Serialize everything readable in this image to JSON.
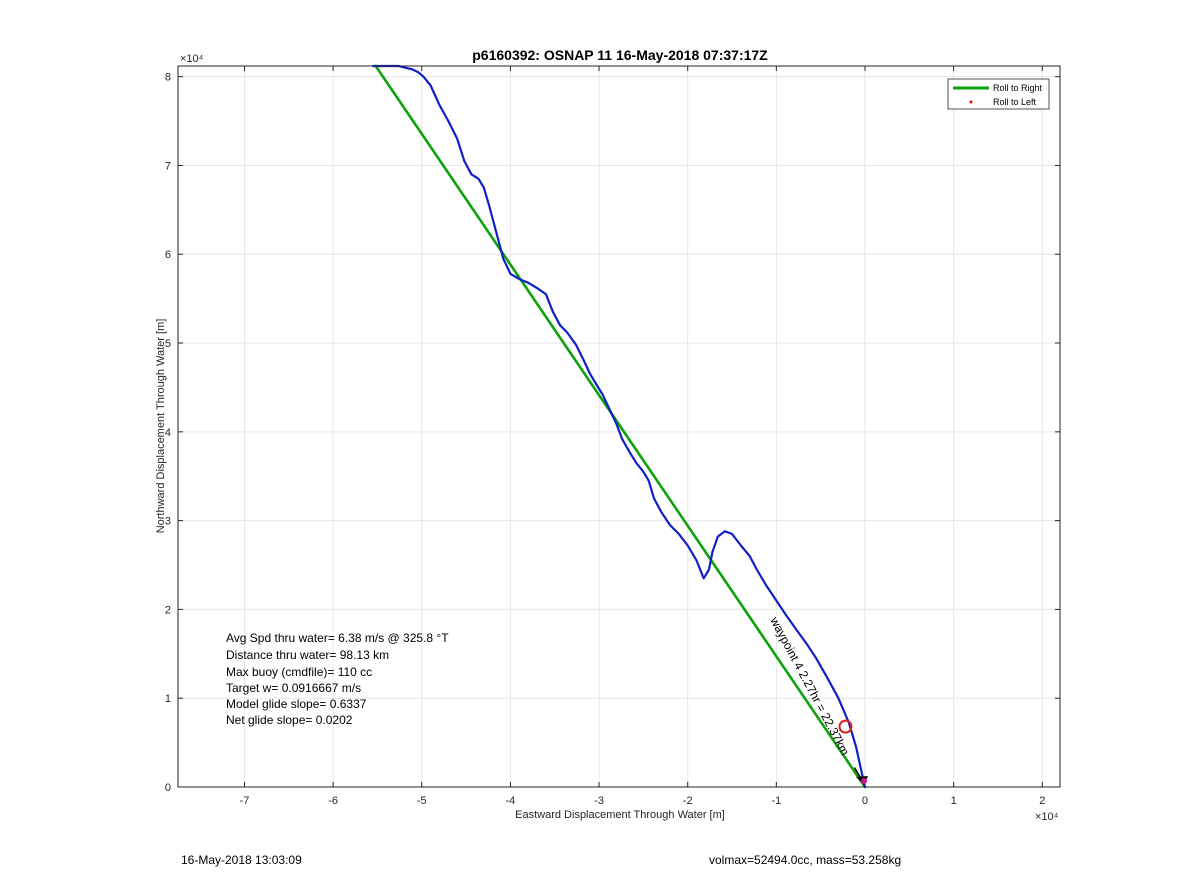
{
  "chart_data": {
    "type": "line",
    "title": "p6160392: OSNAP 11 16-May-2018 07:37:17Z",
    "xlabel": "Eastward Displacement Through Water [m]",
    "ylabel": "Northward Displacement Through Water [m]",
    "x_exponent_label": "×10⁴",
    "y_exponent_label": "×10⁴",
    "xlim": [
      -7.75,
      2.2
    ],
    "ylim": [
      0,
      8.12
    ],
    "x_scale_factor": 10000,
    "y_scale_factor": 10000,
    "xticks": [
      -7,
      -6,
      -5,
      -4,
      -3,
      -2,
      -1,
      0,
      1,
      2
    ],
    "yticks": [
      0,
      1,
      2,
      3,
      4,
      5,
      6,
      7,
      8
    ],
    "grid": true,
    "legend_position": "top-right",
    "legend": [
      {
        "label": "Roll to Right",
        "color": "#0da20d",
        "style": "line"
      },
      {
        "label": "Roll to Left",
        "color": "#ff0000",
        "style": "dot"
      }
    ],
    "series": [
      {
        "name": "Roll to Right",
        "color": "#0da20d",
        "x": [
          0,
          -5.52
        ],
        "y": [
          0,
          8.12
        ]
      },
      {
        "color": "#1020c8",
        "x": [
          0,
          -0.05,
          -0.1,
          -0.18,
          -0.3,
          -0.42,
          -0.55,
          -0.65,
          -0.78,
          -0.9,
          -1.0,
          -1.12,
          -1.22,
          -1.3,
          -1.4,
          -1.5,
          -1.58,
          -1.66,
          -1.72,
          -1.76,
          -1.82,
          -1.9,
          -2.0,
          -2.1,
          -2.2,
          -2.3,
          -2.38,
          -2.44,
          -2.5,
          -2.58,
          -2.66,
          -2.74,
          -2.8,
          -2.88,
          -2.96,
          -3.04,
          -3.1,
          -3.18,
          -3.26,
          -3.36,
          -3.44,
          -3.52,
          -3.6,
          -3.7,
          -3.8,
          -3.9,
          -4.0,
          -4.08,
          -4.16,
          -4.24,
          -4.3,
          -4.36,
          -4.44,
          -4.52,
          -4.6,
          -4.7,
          -4.8,
          -4.9,
          -4.98,
          -5.04,
          -5.1,
          -5.18,
          -5.26,
          -5.36,
          -5.46,
          -5.55
        ],
        "y": [
          0,
          0.22,
          0.45,
          0.72,
          1.0,
          1.22,
          1.45,
          1.6,
          1.78,
          1.95,
          2.1,
          2.28,
          2.45,
          2.6,
          2.72,
          2.85,
          2.88,
          2.82,
          2.65,
          2.45,
          2.35,
          2.55,
          2.72,
          2.85,
          2.95,
          3.1,
          3.25,
          3.45,
          3.55,
          3.65,
          3.78,
          3.92,
          4.08,
          4.25,
          4.42,
          4.55,
          4.65,
          4.82,
          4.98,
          5.12,
          5.2,
          5.35,
          5.55,
          5.62,
          5.68,
          5.72,
          5.78,
          5.95,
          6.25,
          6.55,
          6.75,
          6.85,
          6.9,
          7.05,
          7.3,
          7.5,
          7.68,
          7.9,
          8.0,
          8.05,
          8.08,
          8.1,
          8.12,
          8.12,
          8.12,
          8.12
        ]
      }
    ],
    "annotations": {
      "arrow_label": "waypoint 4 2.27hr = 22.37km",
      "target_marker": {
        "x": -0.22,
        "y": 0.68,
        "color": "#dd2222"
      }
    }
  },
  "stats": [
    "Avg Spd thru water=  6.38 m/s @ 325.8 °T",
    "Distance thru water= 98.13 km",
    "Max buoy (cmdfile)= 110 cc",
    "Target w= 0.0916667 m/s",
    "Model glide slope= 0.6337",
    "Net glide slope= 0.0202"
  ],
  "footer": {
    "left": "16-May-2018 13:03:09",
    "right": "volmax=52494.0cc, mass=53.258kg"
  }
}
